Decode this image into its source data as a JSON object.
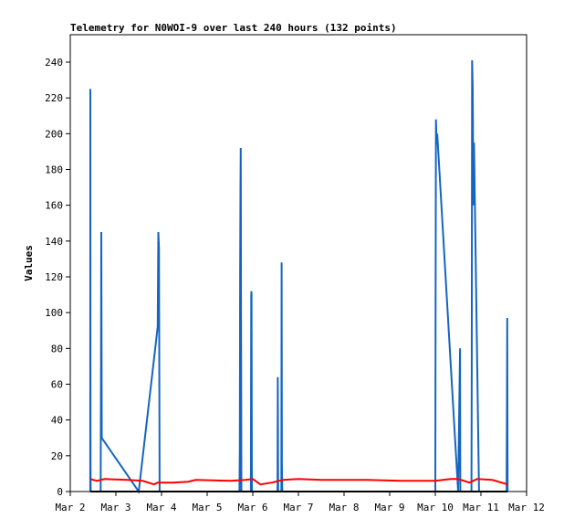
{
  "chart_data": {
    "type": "line",
    "title": "Telemetry for N0WOI-9 over last 240 hours (132 points)",
    "xlabel": "",
    "ylabel": "Values",
    "x_ticks": [
      "Mar 2",
      "Mar 3",
      "Mar 4",
      "Mar 5",
      "Mar 6",
      "Mar 7",
      "Mar 8",
      "Mar 9",
      "Mar 10",
      "Mar 11",
      "Mar 12"
    ],
    "y_ticks": [
      0,
      20,
      40,
      60,
      80,
      100,
      120,
      140,
      160,
      180,
      200,
      220,
      240
    ],
    "xlim": [
      "2025-03-02T00:00",
      "2025-03-12T00:00"
    ],
    "ylim": [
      0,
      240
    ],
    "grid": false,
    "series": [
      {
        "color": "#1565c0",
        "points": [
          [
            "2025-03-02T10:30",
            0
          ],
          [
            "2025-03-02T10:35",
            225
          ],
          [
            "2025-03-02T10:40",
            16
          ],
          [
            "2025-03-02T10:45",
            0
          ],
          [
            "2025-03-02T16:00",
            0
          ],
          [
            "2025-03-02T16:10",
            72
          ],
          [
            "2025-03-02T16:20",
            145
          ],
          [
            "2025-03-02T16:35",
            30
          ],
          [
            "2025-03-03T12:00",
            0
          ],
          [
            "2025-03-03T22:00",
            92
          ],
          [
            "2025-03-03T22:20",
            145
          ],
          [
            "2025-03-03T22:40",
            136
          ],
          [
            "2025-03-03T23:00",
            0
          ],
          [
            "2025-03-05T17:00",
            0
          ],
          [
            "2025-03-05T17:10",
            25
          ],
          [
            "2025-03-05T17:20",
            120
          ],
          [
            "2025-03-05T17:30",
            170
          ],
          [
            "2025-03-05T17:40",
            192
          ],
          [
            "2025-03-05T17:50",
            80
          ],
          [
            "2025-03-05T18:00",
            0
          ],
          [
            "2025-03-05T23:00",
            0
          ],
          [
            "2025-03-05T23:10",
            110
          ],
          [
            "2025-03-05T23:20",
            112
          ],
          [
            "2025-03-05T23:30",
            0
          ],
          [
            "2025-03-06T13:00",
            0
          ],
          [
            "2025-03-06T13:10",
            64
          ],
          [
            "2025-03-06T13:20",
            0
          ],
          [
            "2025-03-06T15:00",
            0
          ],
          [
            "2025-03-06T15:10",
            128
          ],
          [
            "2025-03-06T15:20",
            14
          ],
          [
            "2025-03-06T15:30",
            0
          ],
          [
            "2025-03-10T00:00",
            0
          ],
          [
            "2025-03-10T00:10",
            104
          ],
          [
            "2025-03-10T00:20",
            208
          ],
          [
            "2025-03-10T00:40",
            194
          ],
          [
            "2025-03-10T01:00",
            200
          ],
          [
            "2025-03-10T12:00",
            0
          ],
          [
            "2025-03-10T13:00",
            80
          ],
          [
            "2025-03-10T13:10",
            0
          ],
          [
            "2025-03-10T19:00",
            0
          ],
          [
            "2025-03-10T19:10",
            64
          ],
          [
            "2025-03-10T19:20",
            241
          ],
          [
            "2025-03-10T19:40",
            225
          ],
          [
            "2025-03-10T20:00",
            160
          ],
          [
            "2025-03-10T20:20",
            195
          ],
          [
            "2025-03-10T23:00",
            0
          ],
          [
            "2025-03-11T13:30",
            0
          ],
          [
            "2025-03-11T13:40",
            48
          ],
          [
            "2025-03-11T13:50",
            97
          ],
          [
            "2025-03-11T14:00",
            0
          ]
        ]
      },
      {
        "color": "#ff0000",
        "points": [
          [
            "2025-03-02T10:30",
            7
          ],
          [
            "2025-03-02T14:00",
            6
          ],
          [
            "2025-03-02T18:00",
            7
          ],
          [
            "2025-03-03T06:00",
            6.5
          ],
          [
            "2025-03-03T14:00",
            6
          ],
          [
            "2025-03-03T20:00",
            4
          ],
          [
            "2025-03-03T22:00",
            5
          ],
          [
            "2025-03-04T06:00",
            5
          ],
          [
            "2025-03-04T14:00",
            5.5
          ],
          [
            "2025-03-04T18:00",
            6.5
          ],
          [
            "2025-03-05T12:00",
            6
          ],
          [
            "2025-03-05T20:00",
            6.5
          ],
          [
            "2025-03-06T00:00",
            7
          ],
          [
            "2025-03-06T04:00",
            4
          ],
          [
            "2025-03-06T10:00",
            5
          ],
          [
            "2025-03-06T16:00",
            6.5
          ],
          [
            "2025-03-07T00:00",
            7
          ],
          [
            "2025-03-07T12:00",
            6.5
          ],
          [
            "2025-03-08T12:00",
            6.5
          ],
          [
            "2025-03-09T06:00",
            6
          ],
          [
            "2025-03-10T00:00",
            6
          ],
          [
            "2025-03-10T08:00",
            7
          ],
          [
            "2025-03-10T12:00",
            7
          ],
          [
            "2025-03-10T18:00",
            5
          ],
          [
            "2025-03-10T22:00",
            7
          ],
          [
            "2025-03-11T06:00",
            6.5
          ],
          [
            "2025-03-11T14:00",
            4
          ]
        ]
      },
      {
        "color": "#000000",
        "points": [
          [
            "2025-03-02T10:30",
            0
          ],
          [
            "2025-03-11T14:00",
            0
          ]
        ]
      }
    ]
  }
}
